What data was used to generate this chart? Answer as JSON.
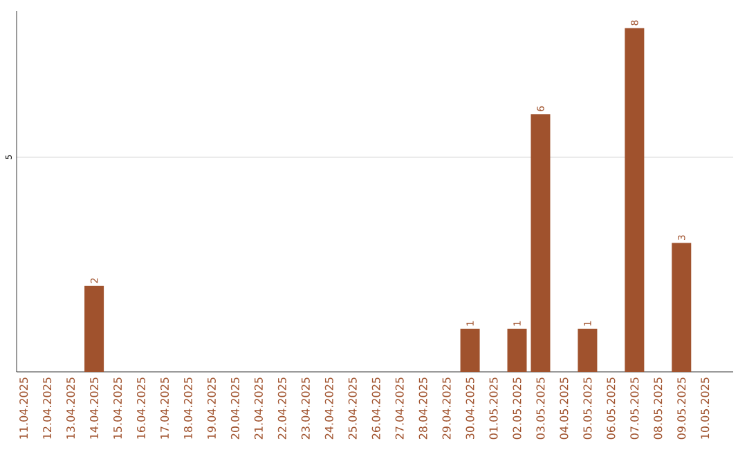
{
  "chart_data": {
    "type": "bar",
    "categories": [
      "11.04.2025",
      "12.04.2025",
      "13.04.2025",
      "14.04.2025",
      "15.04.2025",
      "16.04.2025",
      "17.04.2025",
      "18.04.2025",
      "19.04.2025",
      "20.04.2025",
      "21.04.2025",
      "22.04.2025",
      "23.04.2025",
      "24.04.2025",
      "25.04.2025",
      "26.04.2025",
      "27.04.2025",
      "28.04.2025",
      "29.04.2025",
      "30.04.2025",
      "01.05.2025",
      "02.05.2025",
      "03.05.2025",
      "04.05.2025",
      "05.05.2025",
      "06.05.2025",
      "07.05.2025",
      "08.05.2025",
      "09.05.2025",
      "10.05.2025"
    ],
    "values": [
      0,
      0,
      0,
      2,
      0,
      0,
      0,
      0,
      0,
      0,
      0,
      0,
      0,
      0,
      0,
      0,
      0,
      0,
      0,
      1,
      0,
      1,
      6,
      0,
      1,
      0,
      8,
      0,
      3,
      0
    ],
    "value_labels": [
      null,
      null,
      null,
      "2",
      null,
      null,
      null,
      null,
      null,
      null,
      null,
      null,
      null,
      null,
      null,
      null,
      null,
      null,
      null,
      "1",
      null,
      "1",
      "6",
      null,
      "1",
      null,
      "8",
      null,
      "3",
      null
    ],
    "color": "#a0522d",
    "ylim": [
      0,
      8.4
    ],
    "yticks": [
      5
    ],
    "grid": "y"
  }
}
